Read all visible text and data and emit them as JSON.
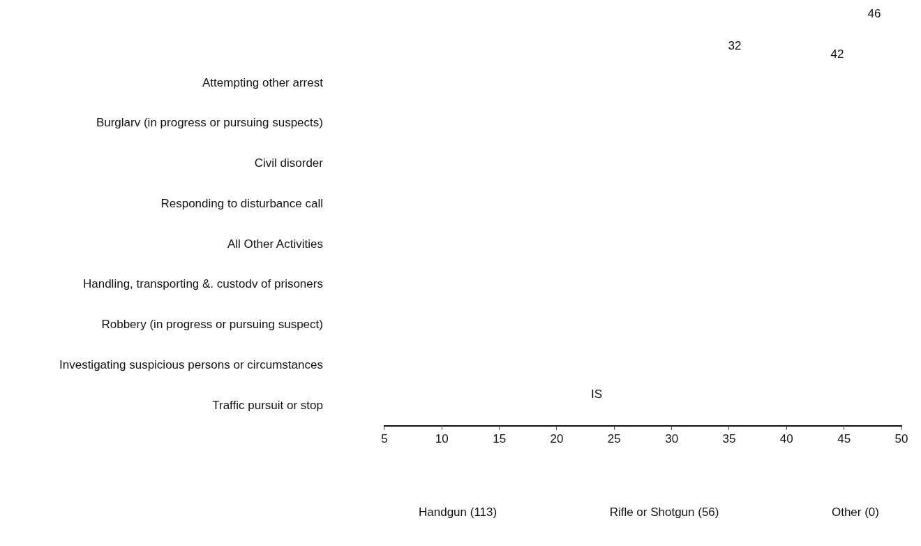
{
  "chart_data": {
    "type": "bar",
    "orientation": "horizontal",
    "categories": [
      "Attempting other arrest",
      "Burglarv (in progress or pursuing suspects)",
      "Civil disorder",
      "Responding to disturbance call",
      "All Other Activities",
      "Handling, transporting &. custodv of prisoners",
      "Robbery (in progress or pursuing suspect)",
      "Investigating suspicious persons or circumstances",
      "Traffic pursuit or stop"
    ],
    "values": [
      null,
      null,
      null,
      null,
      null,
      null,
      null,
      null,
      null
    ],
    "xlim": [
      5,
      50
    ],
    "xticks": [
      5,
      10,
      15,
      20,
      25,
      30,
      35,
      40,
      45,
      50
    ],
    "grid": false,
    "annotations": [
      "46",
      "32",
      "42",
      "IS",
      "Handgun (113)",
      "Rifle or Shotgun (56)",
      "Other (0)"
    ]
  }
}
